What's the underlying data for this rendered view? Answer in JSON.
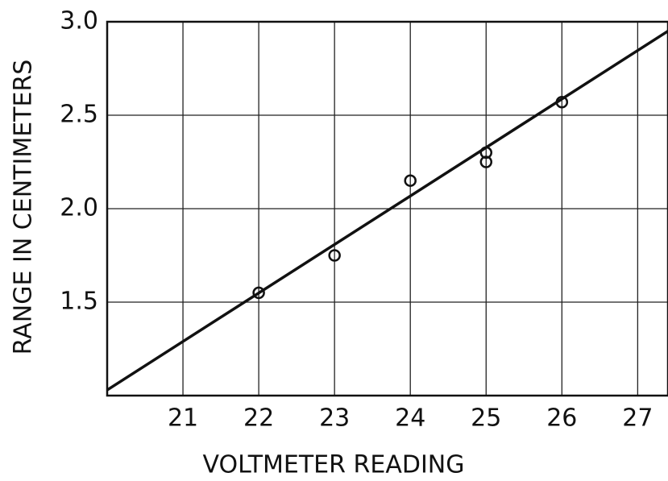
{
  "chart_data": {
    "type": "scatter",
    "xlabel": "VOLTMETER READING",
    "ylabel": "RANGE IN CENTIMETERS",
    "points": {
      "x": [
        22,
        23,
        24,
        25,
        25,
        26
      ],
      "values": [
        1.55,
        1.75,
        2.15,
        2.3,
        2.25,
        2.57
      ]
    },
    "fit_line": {
      "x": [
        20,
        27.4
      ],
      "values": [
        1.03,
        2.95
      ]
    },
    "color": "#111111",
    "xlim": [
      20,
      27.4
    ],
    "xticks": [
      21,
      22,
      23,
      24,
      25,
      26,
      27
    ],
    "ylim": [
      1.0,
      3.0
    ],
    "yticks": [
      1.5,
      {
        "value": 2,
        "label": "2.0"
      },
      2.5,
      {
        "value": 3,
        "label": "3.0"
      }
    ],
    "grid": true
  }
}
